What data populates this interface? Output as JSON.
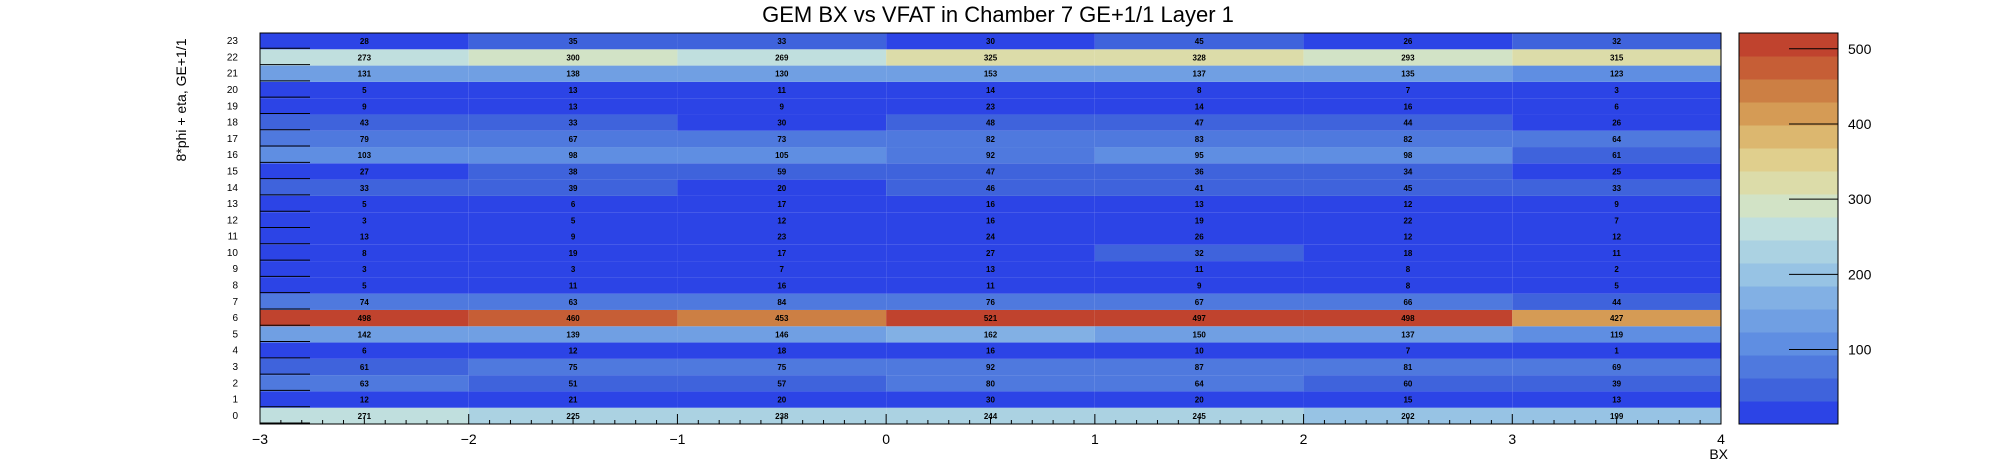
{
  "chart_data": {
    "type": "heatmap",
    "title": "GEM BX vs VFAT in Chamber 7 GE+1/1 Layer 1",
    "xlabel": "BX",
    "ylabel": "8*phi + eta, GE+1/1",
    "x_ticks": [
      "−3",
      "−2",
      "−1",
      "0",
      "1",
      "2",
      "3",
      "4"
    ],
    "xlim": [
      -3,
      4
    ],
    "x_bins": [
      -2.5,
      -1.5,
      -0.5,
      0.5,
      1.5,
      2.5,
      3.5
    ],
    "y_bins": [
      0,
      1,
      2,
      3,
      4,
      5,
      6,
      7,
      8,
      9,
      10,
      11,
      12,
      13,
      14,
      15,
      16,
      17,
      18,
      19,
      20,
      21,
      22,
      23
    ],
    "y_tick_labels": [
      "0",
      "1",
      "2",
      "3",
      "4",
      "5",
      "6",
      "7",
      "8",
      "9",
      "10",
      "11",
      "12",
      "13",
      "14",
      "15",
      "16",
      "17",
      "18",
      "19",
      "20",
      "21",
      "22",
      "23"
    ],
    "z_min": 1,
    "z_max": 521,
    "colorbar_ticks": [
      100,
      200,
      300,
      400,
      500
    ],
    "colorbar_tick_labels": [
      "100",
      "200",
      "300",
      "400",
      "500"
    ],
    "values": [
      [
        271,
        225,
        238,
        244,
        245,
        202,
        199
      ],
      [
        12,
        21,
        20,
        30,
        20,
        15,
        13
      ],
      [
        63,
        51,
        57,
        80,
        64,
        60,
        39
      ],
      [
        61,
        75,
        75,
        92,
        87,
        81,
        69
      ],
      [
        6,
        12,
        18,
        16,
        10,
        7,
        1
      ],
      [
        142,
        139,
        146,
        162,
        150,
        137,
        119
      ],
      [
        498,
        460,
        453,
        521,
        497,
        498,
        427
      ],
      [
        74,
        63,
        84,
        76,
        67,
        66,
        44
      ],
      [
        5,
        11,
        16,
        11,
        9,
        8,
        5
      ],
      [
        3,
        3,
        7,
        13,
        11,
        8,
        2
      ],
      [
        8,
        19,
        17,
        27,
        32,
        18,
        11
      ],
      [
        13,
        9,
        23,
        24,
        26,
        12,
        12
      ],
      [
        3,
        5,
        12,
        16,
        19,
        22,
        7
      ],
      [
        5,
        6,
        17,
        16,
        13,
        12,
        9
      ],
      [
        33,
        39,
        20,
        46,
        41,
        45,
        33
      ],
      [
        27,
        38,
        59,
        47,
        36,
        34,
        25
      ],
      [
        103,
        98,
        105,
        92,
        95,
        98,
        61
      ],
      [
        79,
        67,
        73,
        82,
        83,
        82,
        64
      ],
      [
        43,
        33,
        30,
        48,
        47,
        44,
        26
      ],
      [
        9,
        13,
        9,
        23,
        14,
        16,
        6
      ],
      [
        5,
        13,
        11,
        14,
        8,
        7,
        3
      ],
      [
        131,
        138,
        130,
        153,
        137,
        135,
        123
      ],
      [
        273,
        300,
        269,
        325,
        328,
        293,
        315
      ],
      [
        28,
        35,
        33,
        30,
        45,
        26,
        32
      ]
    ],
    "grid": false,
    "legend": "colorbar-right"
  },
  "palette": [
    "#2c44e6",
    "#3f63dc",
    "#4f79de",
    "#5f8ee2",
    "#709fe3",
    "#82b0e4",
    "#97c3e4",
    "#abd2e2",
    "#c0dfde",
    "#d2e3c6",
    "#dcdca9",
    "#e0cf8d",
    "#dcb76f",
    "#d59b55",
    "#cc7f44",
    "#c65e36",
    "#c0432e"
  ]
}
